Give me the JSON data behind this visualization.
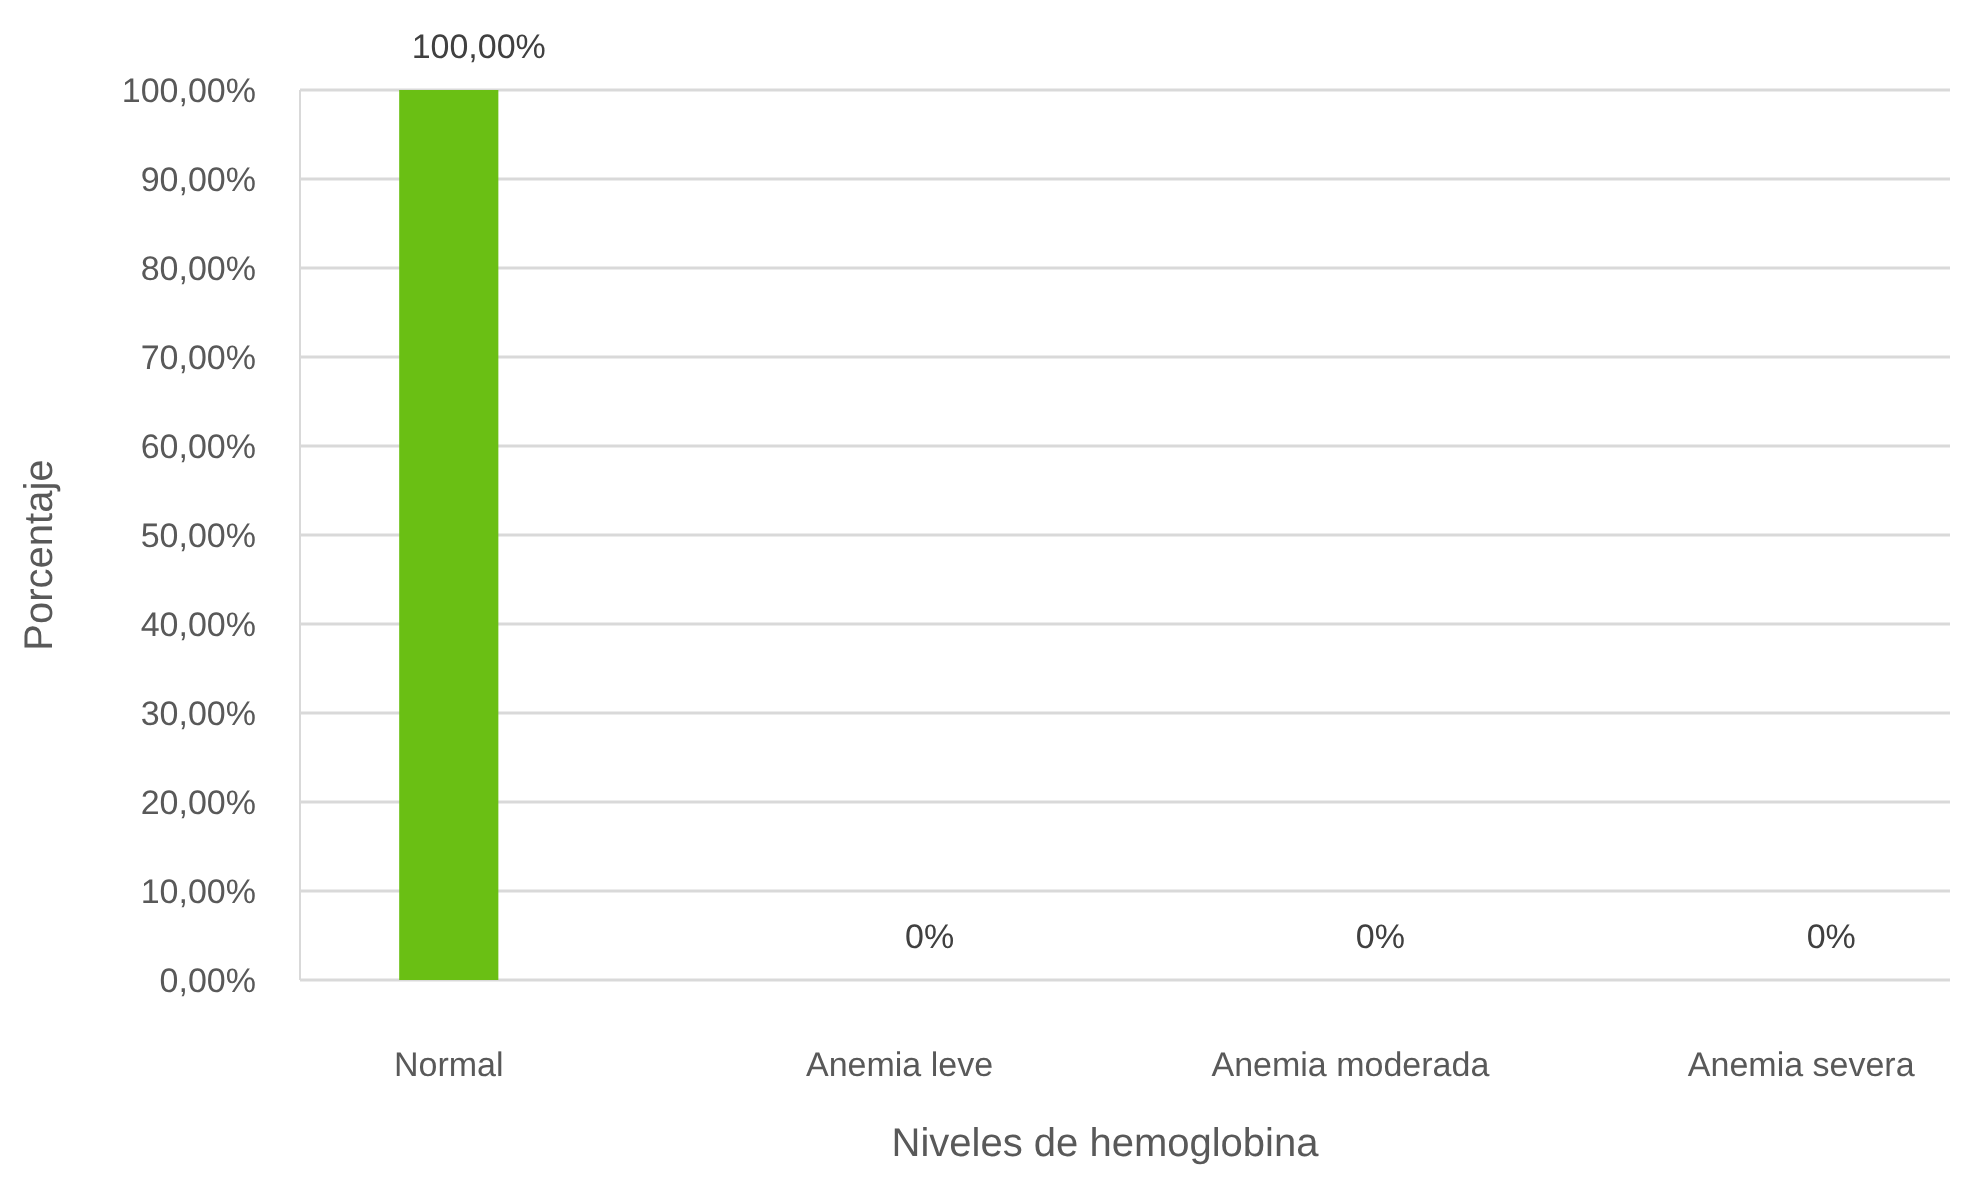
{
  "chart_data": {
    "type": "bar",
    "xlabel": "Niveles de hemoglobina",
    "ylabel": "Porcentaje",
    "categories": [
      "Normal",
      "Anemia leve",
      "Anemia moderada",
      "Anemia severa"
    ],
    "values": [
      100,
      0,
      0,
      0
    ],
    "color": "#6abf14",
    "value_labels": [
      "100,00%",
      "0%",
      "0%",
      "0%"
    ],
    "ylim": [
      0,
      100
    ],
    "yticks": [
      {
        "value": 0,
        "label": "0,00%"
      },
      {
        "value": 10,
        "label": "10,00%"
      },
      {
        "value": 20,
        "label": "20,00%"
      },
      {
        "value": 30,
        "label": "30,00%"
      },
      {
        "value": 40,
        "label": "40,00%"
      },
      {
        "value": 50,
        "label": "50,00%"
      },
      {
        "value": 60,
        "label": "60,00%"
      },
      {
        "value": 70,
        "label": "70,00%"
      },
      {
        "value": 80,
        "label": "80,00%"
      },
      {
        "value": 90,
        "label": "90,00%"
      },
      {
        "value": 100,
        "label": "100,00%"
      }
    ],
    "grid": "y"
  }
}
